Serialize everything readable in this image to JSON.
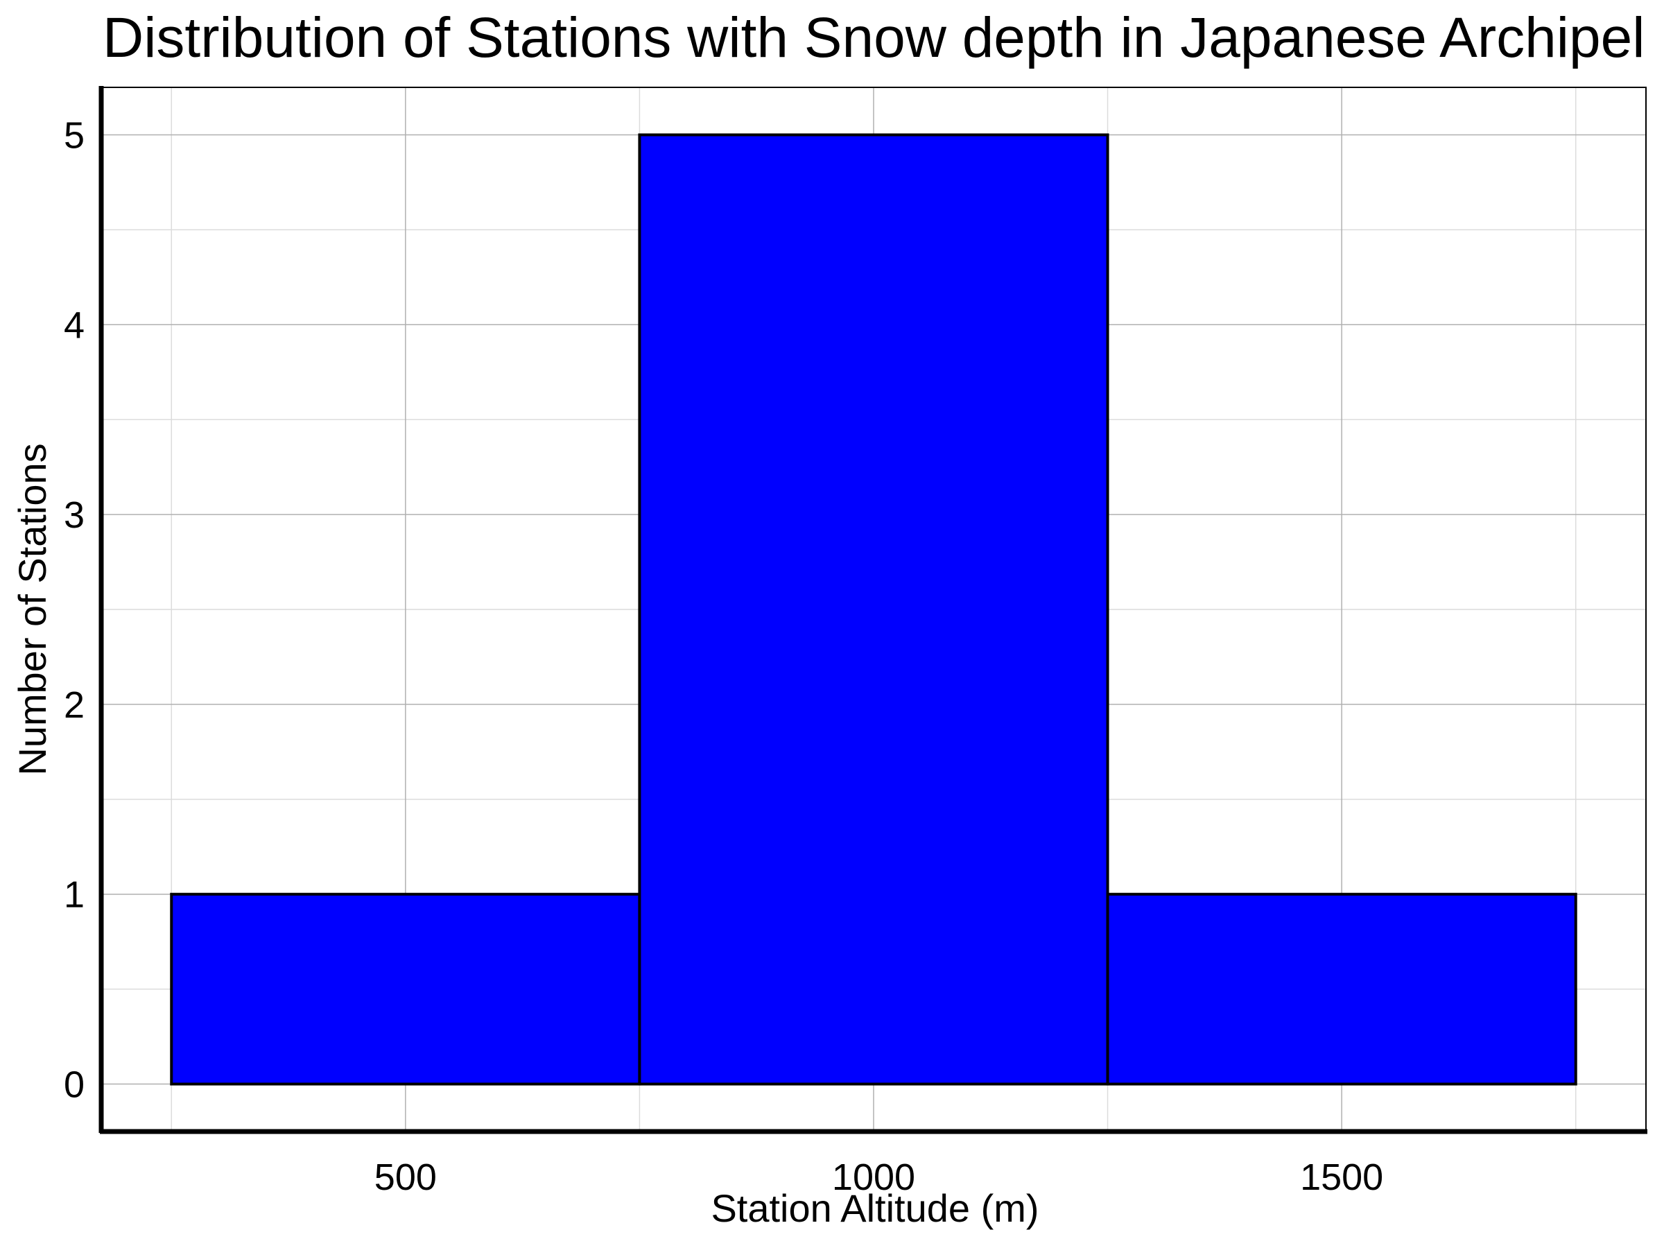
{
  "chart_data": {
    "type": "bar",
    "title": "Distribution of Stations with Snow depth in Japanese Archipel",
    "xlabel": "Station Altitude (m)",
    "ylabel": "Number of Stations",
    "bins": [
      {
        "x_start": 250,
        "x_end": 750,
        "count": 1
      },
      {
        "x_start": 750,
        "x_end": 1250,
        "count": 5
      },
      {
        "x_start": 1250,
        "x_end": 1750,
        "count": 1
      }
    ],
    "xlim": [
      175,
      1825
    ],
    "ylim": [
      -0.25,
      5.25
    ],
    "xticks": [
      500,
      1000,
      1500
    ],
    "xtick_labels": [
      "500",
      "1000",
      "1500"
    ],
    "yticks": [
      0,
      1,
      2,
      3,
      4,
      5
    ],
    "ytick_labels": [
      "0",
      "1",
      "2",
      "3",
      "4",
      "5"
    ],
    "x_minor_grid": [
      250,
      750,
      1250,
      1750
    ],
    "y_minor_grid": [
      0.5,
      1.5,
      2.5,
      3.5,
      4.5
    ],
    "grid": true,
    "colors": {
      "bar_fill": "#0000ff",
      "bar_edge": "#000000",
      "grid_major": "#b0b0b0",
      "grid_minor": "#dcdcdc"
    }
  }
}
